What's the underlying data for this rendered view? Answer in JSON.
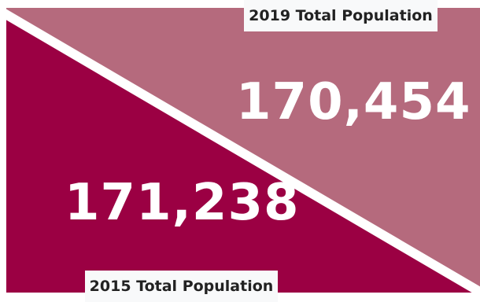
{
  "panels": {
    "year_2019": {
      "label": "2019 Total Population",
      "value": "170,454",
      "color": "#b56a7d"
    },
    "year_2015": {
      "label": "2015 Total Population",
      "value": "171,238",
      "color": "#9b0043"
    }
  },
  "colors": {
    "divider": "#ffffff",
    "label_background": "#f8f9fa",
    "label_text": "#222222",
    "number_text": "#ffffff"
  }
}
